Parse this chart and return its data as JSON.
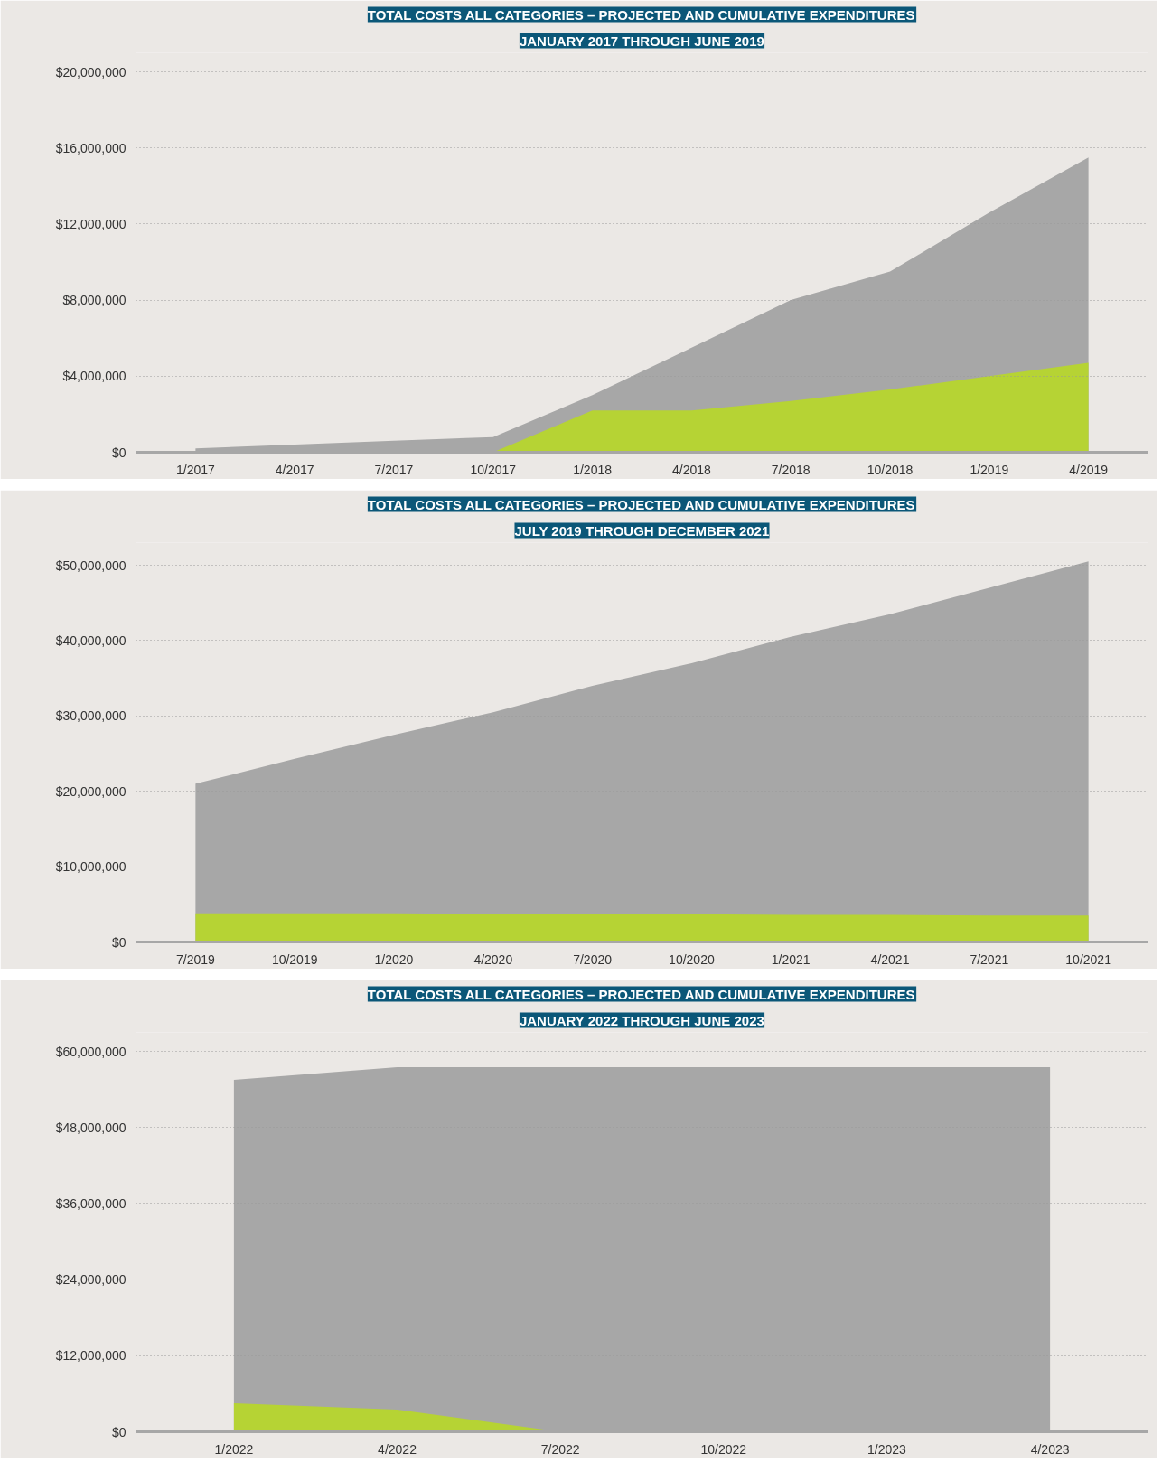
{
  "chart_data": [
    {
      "type": "area",
      "title": "TOTAL COSTS ALL CATEGORIES – PROJECTED AND CUMULATIVE EXPENDITURES",
      "subtitle": "JANUARY 2017 THROUGH JUNE 2019",
      "categories": [
        "1/2017",
        "4/2017",
        "7/2017",
        "10/2017",
        "1/2018",
        "4/2018",
        "7/2018",
        "10/2018",
        "1/2019",
        "4/2019"
      ],
      "series": [
        {
          "color": "#a7a7a7",
          "values": [
            200000,
            400000,
            600000,
            800000,
            3000000,
            5500000,
            8000000,
            9500000,
            12600000,
            15500000
          ]
        },
        {
          "color": "#b6d334",
          "values": [
            0,
            0,
            0,
            0,
            2200000,
            2200000,
            2700000,
            3300000,
            4000000,
            4700000
          ]
        }
      ],
      "ylim": [
        0,
        21000000
      ],
      "yticks": [
        {
          "value": 0,
          "label": "$0"
        },
        {
          "value": 4000000,
          "label": "$4,000,000"
        },
        {
          "value": 8000000,
          "label": "$8,000,000"
        },
        {
          "value": 12000000,
          "label": "$12,000,000"
        },
        {
          "value": 16000000,
          "label": "$16,000,000"
        },
        {
          "value": 20000000,
          "label": "$20,000,000"
        }
      ],
      "grid": "y"
    },
    {
      "type": "area",
      "title": "TOTAL COSTS ALL CATEGORIES – PROJECTED AND CUMULATIVE EXPENDITURES",
      "subtitle": "JULY 2019 THROUGH DECEMBER 2021",
      "categories": [
        "7/2019",
        "10/2019",
        "1/2020",
        "4/2020",
        "7/2020",
        "10/2020",
        "1/2021",
        "4/2021",
        "7/2021",
        "10/2021"
      ],
      "series": [
        {
          "color": "#a7a7a7",
          "values": [
            21000000,
            24300000,
            27500000,
            30500000,
            34000000,
            37000000,
            40500000,
            43500000,
            47000000,
            50500000
          ]
        },
        {
          "color": "#b6d334",
          "values": [
            3800000,
            3800000,
            3800000,
            3700000,
            3700000,
            3700000,
            3600000,
            3600000,
            3500000,
            3500000
          ]
        }
      ],
      "ylim": [
        0,
        53000000
      ],
      "yticks": [
        {
          "value": 0,
          "label": "$0"
        },
        {
          "value": 10000000,
          "label": "$10,000,000"
        },
        {
          "value": 20000000,
          "label": "$20,000,000"
        },
        {
          "value": 30000000,
          "label": "$30,000,000"
        },
        {
          "value": 40000000,
          "label": "$40,000,000"
        },
        {
          "value": 50000000,
          "label": "$50,000,000"
        }
      ],
      "grid": "y"
    },
    {
      "type": "area",
      "title": "TOTAL COSTS ALL CATEGORIES – PROJECTED AND CUMULATIVE EXPENDITURES",
      "subtitle": "JANUARY 2022 THROUGH JUNE 2023",
      "categories": [
        "1/2022",
        "4/2022",
        "7/2022",
        "10/2022",
        "1/2023",
        "4/2023"
      ],
      "series": [
        {
          "color": "#a7a7a7",
          "values": [
            55500000,
            57500000,
            57500000,
            57500000,
            57500000,
            57500000
          ]
        },
        {
          "color": "#b6d334",
          "values": [
            4500000,
            3500000,
            0,
            0,
            0,
            0
          ]
        }
      ],
      "ylim": [
        0,
        63000000
      ],
      "yticks": [
        {
          "value": 0,
          "label": "$0"
        },
        {
          "value": 12000000,
          "label": "$12,000,000"
        },
        {
          "value": 24000000,
          "label": "$24,000,000"
        },
        {
          "value": 36000000,
          "label": "$36,000,000"
        },
        {
          "value": 48000000,
          "label": "$48,000,000"
        },
        {
          "value": 60000000,
          "label": "$60,000,000"
        }
      ],
      "grid": "y"
    }
  ]
}
